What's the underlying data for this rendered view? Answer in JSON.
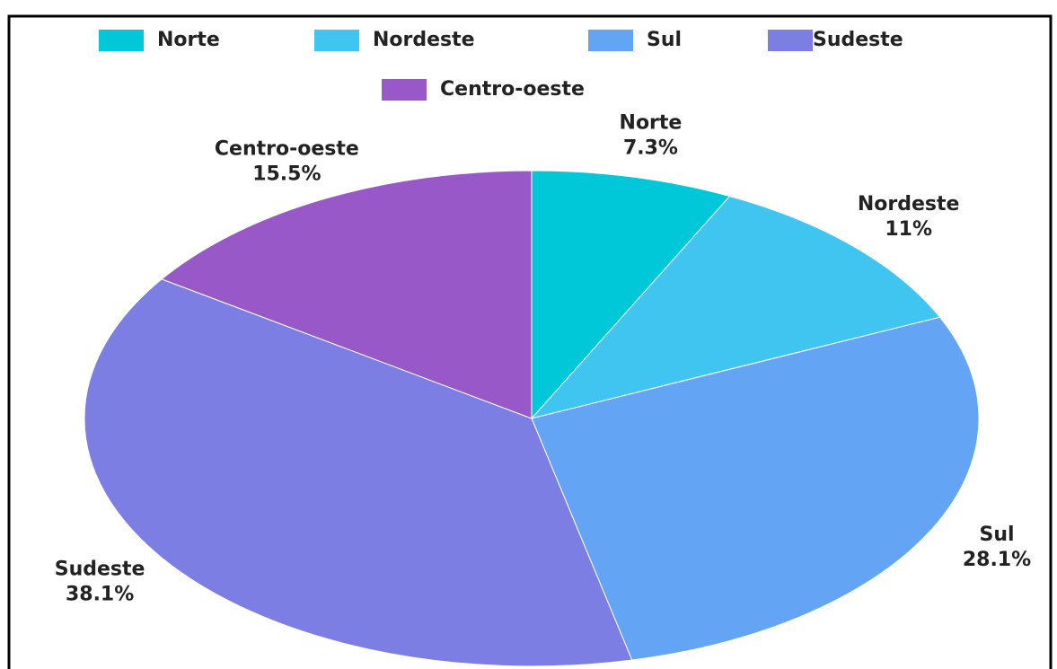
{
  "chart_data": {
    "type": "pie",
    "categories": [
      "Norte",
      "Nordeste",
      "Sul",
      "Sudeste",
      "Centro-oeste"
    ],
    "values": [
      7.3,
      11,
      28.1,
      38.1,
      15.5
    ],
    "value_labels": [
      "7.3%",
      "11%",
      "28.1%",
      "38.1%",
      "15.5%"
    ],
    "colors": [
      "#00c8d8",
      "#40c4f0",
      "#64a4f4",
      "#7c7ee4",
      "#9858c8"
    ],
    "legend": "top"
  }
}
